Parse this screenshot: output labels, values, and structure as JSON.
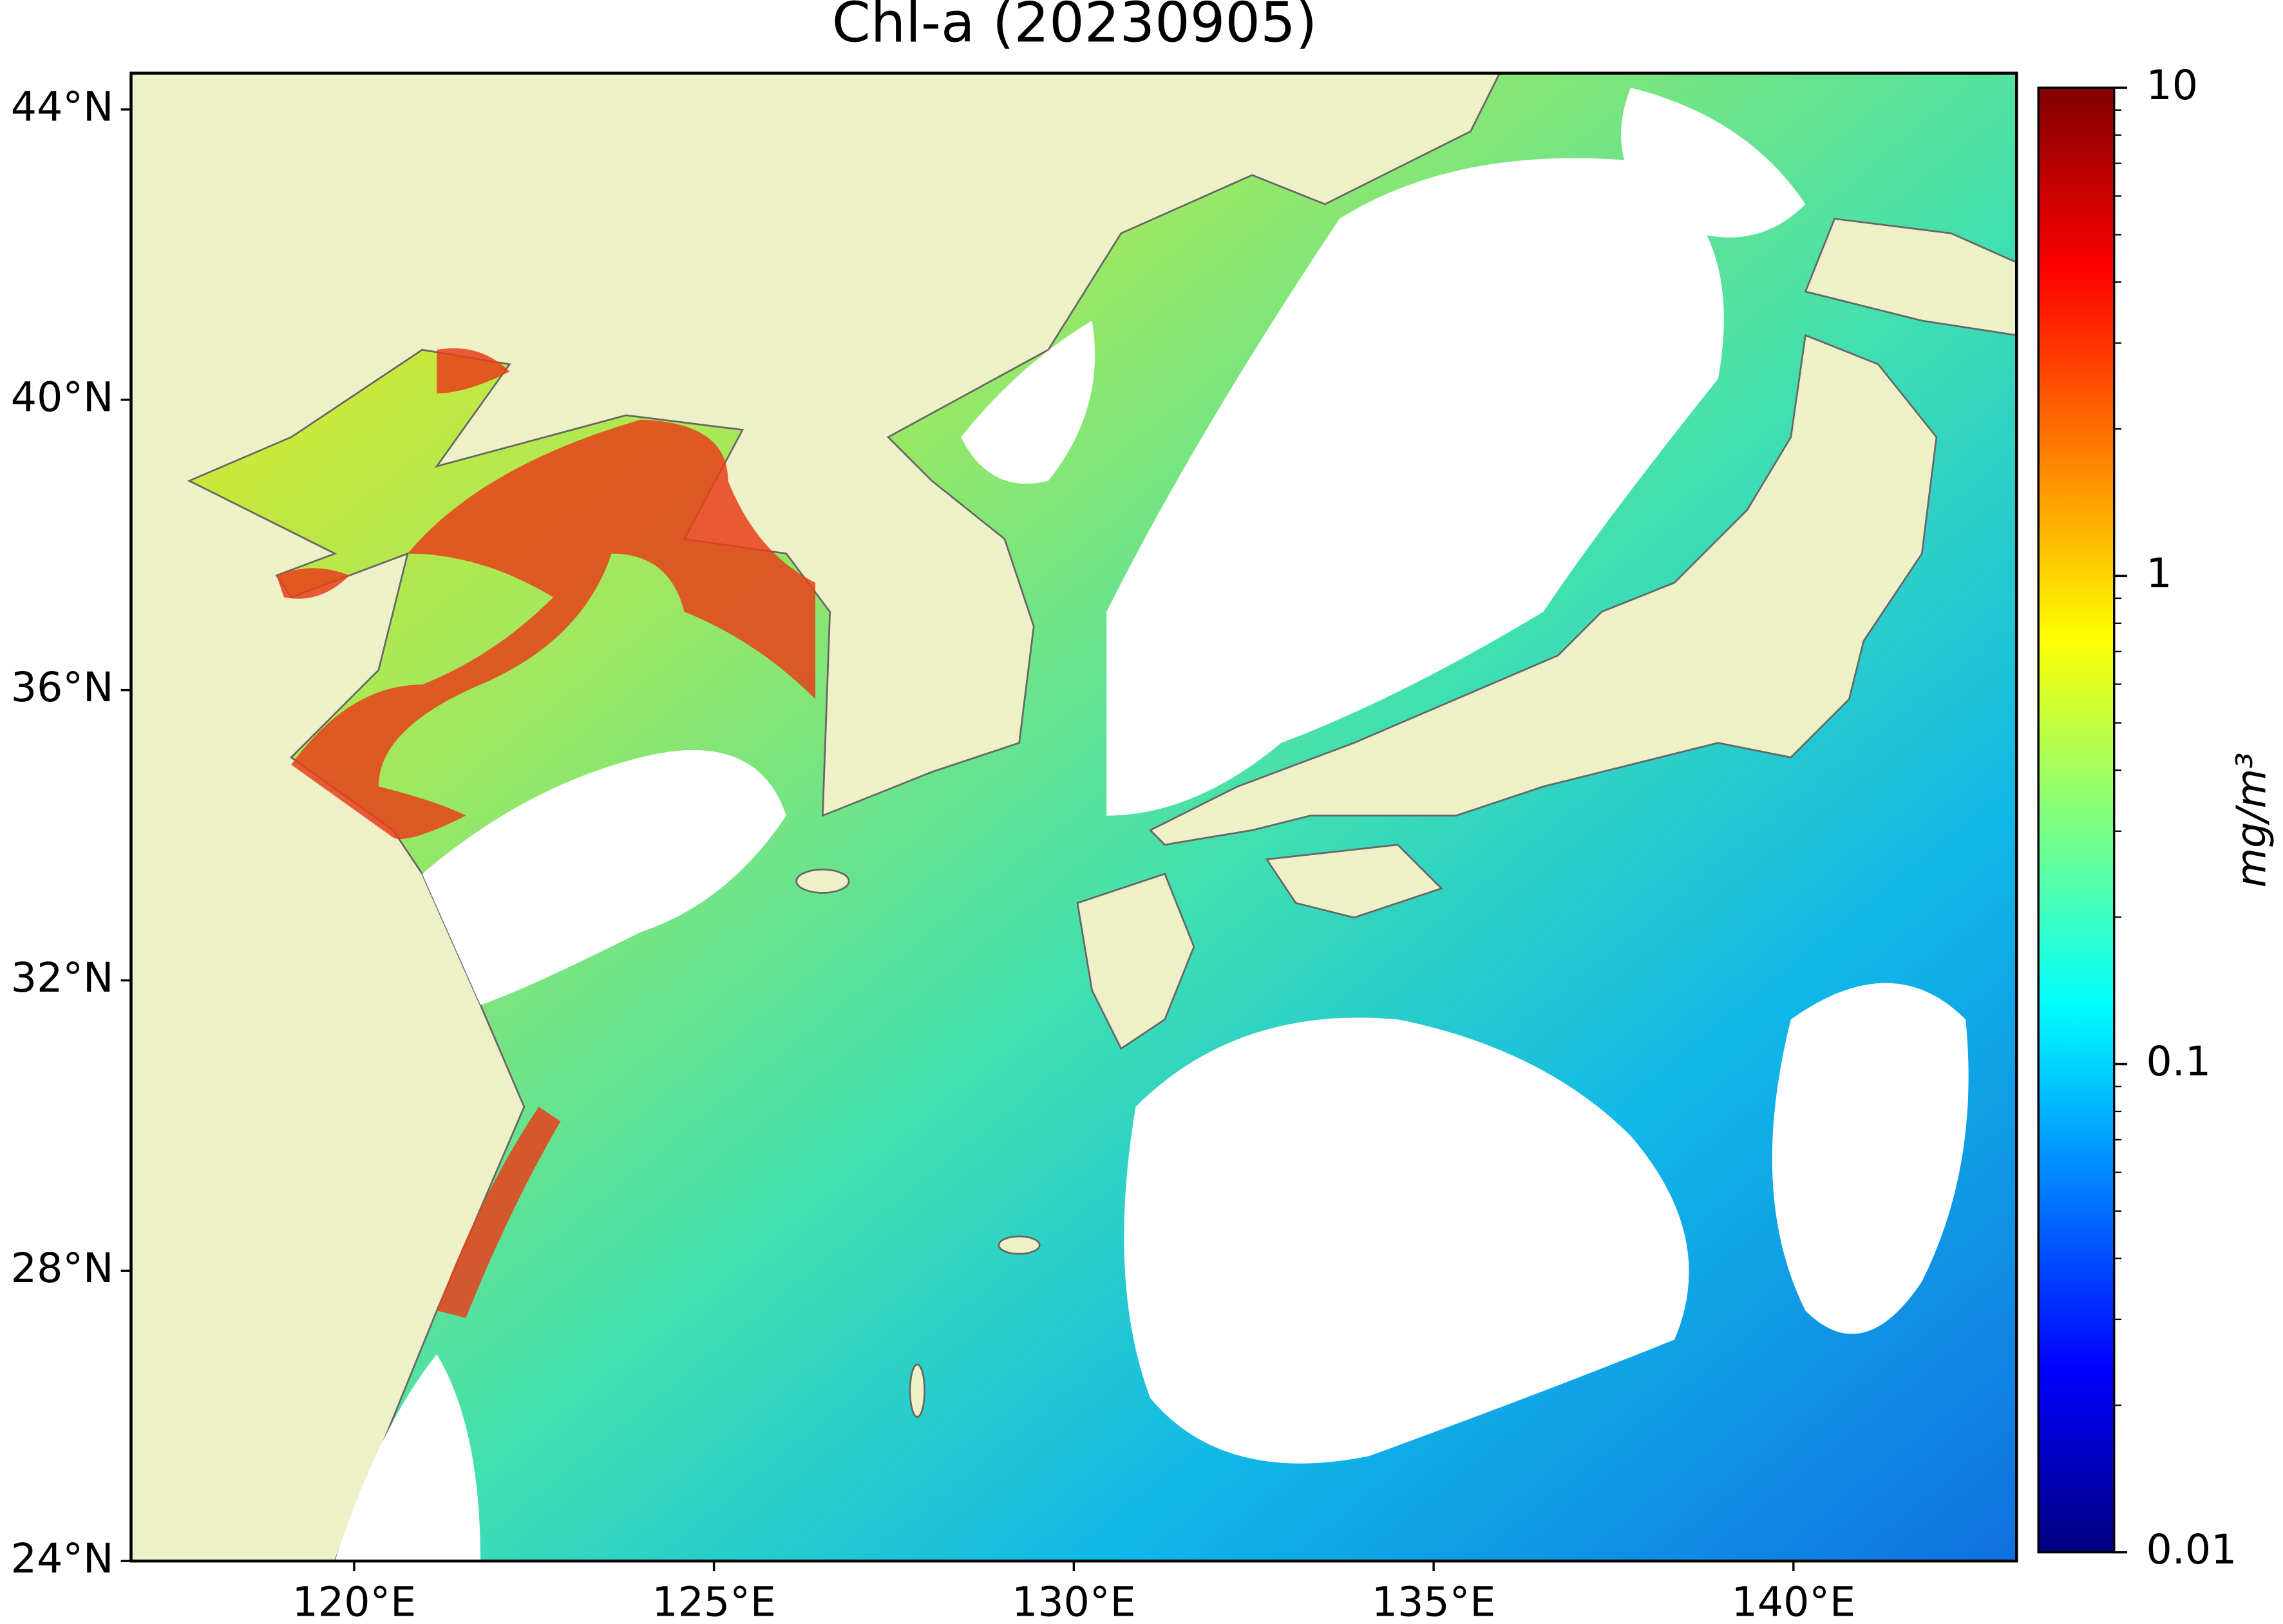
{
  "title": "Chl-a (20230905)",
  "map": {
    "xlim": [
      116.9,
      143.1
    ],
    "ylim": [
      24,
      44.5
    ],
    "xticks": [
      {
        "value": 120,
        "label": "120°E"
      },
      {
        "value": 125,
        "label": "125°E"
      },
      {
        "value": 130,
        "label": "130°E"
      },
      {
        "value": 135,
        "label": "135°E"
      },
      {
        "value": 140,
        "label": "140°E"
      }
    ],
    "yticks": [
      {
        "value": 24,
        "label": "24°N"
      },
      {
        "value": 28,
        "label": "28°N"
      },
      {
        "value": 32,
        "label": "32°N"
      },
      {
        "value": 36,
        "label": "36°N"
      },
      {
        "value": 40,
        "label": "40°N"
      },
      {
        "value": 44,
        "label": "44°N"
      }
    ]
  },
  "colorbar": {
    "label": "mg/m³",
    "lim": [
      0.01,
      10
    ],
    "log": true,
    "ticks": [
      0.01,
      0.1,
      1,
      10
    ]
  }
}
